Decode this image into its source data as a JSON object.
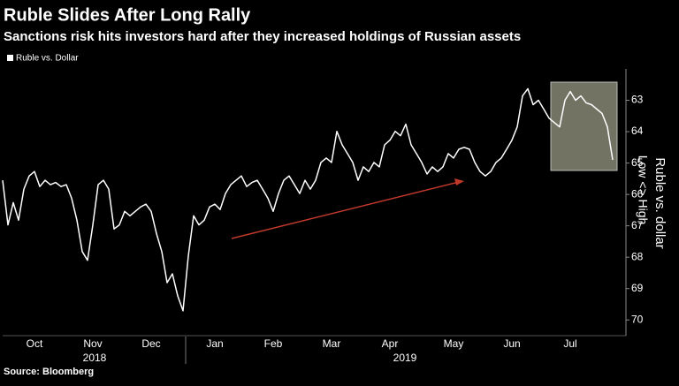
{
  "chart_data": {
    "type": "line",
    "title": "Ruble Slides After Long Rally",
    "subtitle": "Sanctions risk hits investors hard after they increased holdings of Russian assets",
    "y_label": "Ruble vs. dollar",
    "y_direction_label": "Low <> High",
    "source": "Source: Bloomberg",
    "year_labels": [
      "2018",
      "2019"
    ],
    "categories": [
      null,
      null,
      null,
      null,
      null,
      null,
      "Oct",
      null,
      null,
      null,
      null,
      null,
      null,
      null,
      null,
      null,
      null,
      "Nov",
      null,
      null,
      null,
      null,
      null,
      null,
      null,
      null,
      null,
      null,
      "Dec",
      null,
      null,
      null,
      null,
      null,
      null,
      null,
      null,
      null,
      null,
      null,
      "Jan",
      null,
      null,
      null,
      null,
      null,
      null,
      null,
      null,
      null,
      null,
      "Feb",
      null,
      null,
      null,
      null,
      null,
      null,
      null,
      null,
      null,
      null,
      "Mar",
      null,
      null,
      null,
      null,
      null,
      null,
      null,
      null,
      null,
      null,
      "Apr",
      null,
      null,
      null,
      null,
      null,
      null,
      null,
      null,
      null,
      null,
      null,
      "May",
      null,
      null,
      null,
      null,
      null,
      null,
      null,
      null,
      null,
      null,
      "Jun",
      null,
      null,
      null,
      null,
      null,
      null,
      null,
      null,
      null,
      null,
      "Jul",
      null,
      null,
      null,
      null,
      null,
      null,
      null,
      null
    ],
    "series": [
      {
        "name": "Ruble vs. Dollar",
        "color": "#ffffff",
        "values": [
          65.55,
          66.97,
          66.26,
          66.82,
          65.83,
          65.41,
          65.27,
          65.75,
          65.55,
          65.69,
          65.62,
          65.75,
          65.69,
          66.12,
          66.82,
          67.82,
          68.1,
          66.97,
          65.69,
          65.55,
          65.83,
          67.1,
          66.97,
          66.54,
          66.68,
          66.54,
          66.4,
          66.31,
          66.54,
          67.25,
          67.82,
          68.81,
          68.53,
          69.23,
          69.71,
          67.96,
          66.68,
          66.97,
          66.82,
          66.4,
          66.31,
          66.48,
          65.97,
          65.69,
          65.55,
          65.41,
          65.75,
          65.62,
          65.55,
          65.83,
          66.12,
          66.54,
          65.97,
          65.55,
          65.41,
          65.69,
          65.97,
          65.55,
          65.83,
          65.55,
          64.98,
          64.84,
          64.98,
          63.99,
          64.42,
          64.7,
          64.98,
          65.55,
          65.12,
          65.27,
          64.98,
          65.12,
          64.42,
          64.27,
          63.99,
          64.13,
          63.76,
          64.42,
          64.7,
          64.98,
          65.35,
          65.12,
          65.27,
          65.12,
          64.7,
          64.84,
          64.56,
          64.5,
          64.56,
          64.98,
          65.27,
          65.41,
          65.27,
          64.98,
          64.84,
          64.56,
          64.27,
          63.85,
          62.86,
          62.63,
          63.14,
          63.0,
          63.28,
          63.57,
          63.71,
          63.85,
          63.0,
          62.72,
          63.0,
          62.86,
          63.08,
          63.14,
          63.28,
          63.42,
          63.85,
          64.9
        ]
      }
    ],
    "ylim": [
      62,
      70.5
    ],
    "y_inverted": true,
    "yticks": [
      63,
      64,
      65,
      66,
      67,
      68,
      69,
      70
    ],
    "y_axis_side": "right",
    "grid": false
  }
}
